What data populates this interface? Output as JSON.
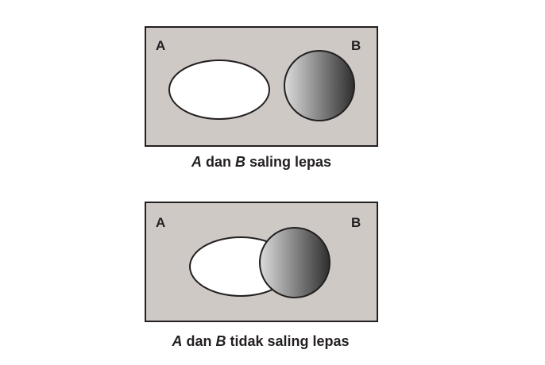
{
  "colors": {
    "universe_fill": "#cfc9c5",
    "universe_stroke": "#231f20",
    "set_a_fill": "#ffffff",
    "set_b_gradient_light": "#dcdcdc",
    "set_b_gradient_mid": "#8e8e8e",
    "set_b_gradient_dark": "#2e2e2e",
    "text": "#231f20"
  },
  "diagrams": [
    {
      "label_a": "A",
      "label_b": "B",
      "caption": {
        "set_a": "A",
        "conj": " dan ",
        "set_b": "B",
        "rest": " saling lepas"
      }
    },
    {
      "label_a": "A",
      "label_b": "B",
      "caption": {
        "set_a": "A",
        "conj": " dan ",
        "set_b": "B",
        "rest": " tidak saling lepas"
      }
    }
  ]
}
